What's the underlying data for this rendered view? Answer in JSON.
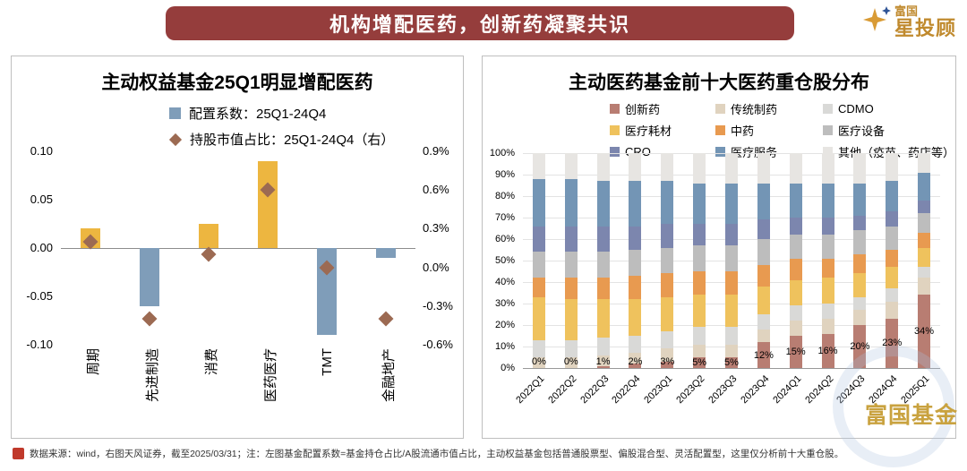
{
  "banner": {
    "title": "机构增配医药，创新药凝聚共识"
  },
  "logo": {
    "brand": "富国",
    "name": "星投顾"
  },
  "watermark": {
    "text": "富国基金"
  },
  "footer": {
    "text": "数据来源：wind，右图天风证券，截至2025/03/31；注：左图基金配置系数=基金持仓占比/A股流通市值占比，主动权益基金包括普通股票型、偏股混合型、灵活配置型，这里仅分析前十大重仓股。"
  },
  "chart_data": [
    {
      "id": "fund-allocation",
      "type": "bar",
      "title": "主动权益基金25Q1明显增配医药",
      "legend": [
        {
          "label": "配置系数：25Q1-24Q4",
          "marker": "square",
          "color": "#7f9db9"
        },
        {
          "label": "持股市值占比：25Q1-24Q4（右）",
          "marker": "diamond",
          "color": "#9c6a52"
        }
      ],
      "categories": [
        "周期",
        "先进制造",
        "消费",
        "医药医疗",
        "TMT",
        "金融地产"
      ],
      "bar_values": [
        0.02,
        -0.06,
        0.025,
        0.09,
        -0.09,
        -0.01
      ],
      "bar_color_positive": "#edb640",
      "bar_color_negative": "#7f9db9",
      "diamond_values": [
        0.2,
        -0.4,
        0.1,
        0.6,
        0.0,
        -0.4
      ],
      "left_axis": {
        "min": -0.1,
        "max": 0.1,
        "ticks": [
          "0.10",
          "0.05",
          "0.00",
          "-0.05",
          "-0.10"
        ]
      },
      "right_axis": {
        "min": -0.6,
        "max": 0.9,
        "ticks": [
          "0.9%",
          "0.6%",
          "0.3%",
          "0.0%",
          "-0.3%",
          "-0.6%"
        ]
      }
    },
    {
      "id": "top10-holdings",
      "type": "stacked-bar",
      "title": "主动医药基金前十大医药重仓股分布",
      "categories": [
        "2022Q1",
        "2022Q2",
        "2022Q3",
        "2022Q4",
        "2023Q1",
        "2023Q2",
        "2023Q3",
        "2023Q4",
        "2024Q1",
        "2024Q2",
        "2024Q3",
        "2024Q4",
        "2025Q1"
      ],
      "series": [
        {
          "name": "创新药",
          "color": "#b87d72",
          "values": [
            0,
            0,
            1,
            2,
            3,
            5,
            5,
            12,
            15,
            16,
            20,
            23,
            34
          ]
        },
        {
          "name": "传统制药",
          "color": "#e0d3bf",
          "values": [
            5,
            5,
            5,
            5,
            6,
            6,
            6,
            6,
            7,
            7,
            7,
            8,
            8
          ]
        },
        {
          "name": "CDMO",
          "color": "#d9d9d7",
          "values": [
            8,
            8,
            8,
            8,
            8,
            8,
            8,
            7,
            7,
            7,
            6,
            6,
            5
          ]
        },
        {
          "name": "医疗耗材",
          "color": "#efc25d",
          "values": [
            20,
            19,
            18,
            17,
            16,
            15,
            15,
            13,
            12,
            12,
            11,
            10,
            9
          ]
        },
        {
          "name": "中药",
          "color": "#e89a50",
          "values": [
            9,
            10,
            10,
            11,
            11,
            11,
            11,
            10,
            10,
            9,
            9,
            8,
            7
          ]
        },
        {
          "name": "医疗设备",
          "color": "#bdbdbd",
          "values": [
            12,
            12,
            12,
            12,
            12,
            12,
            12,
            12,
            11,
            11,
            11,
            11,
            9
          ]
        },
        {
          "name": "CRO",
          "color": "#7c86ae",
          "values": [
            12,
            12,
            12,
            11,
            11,
            10,
            10,
            9,
            8,
            8,
            7,
            7,
            6
          ]
        },
        {
          "name": "医疗服务",
          "color": "#7395b5",
          "values": [
            22,
            22,
            21,
            21,
            20,
            19,
            19,
            17,
            16,
            16,
            15,
            14,
            13
          ]
        },
        {
          "name": "其他（疫苗、药店等）",
          "color": "#e7e5e2",
          "values": [
            12,
            12,
            13,
            13,
            13,
            14,
            14,
            14,
            14,
            14,
            14,
            13,
            9
          ]
        }
      ],
      "labels": [
        "0%",
        "0%",
        "1%",
        "2%",
        "3%",
        "5%",
        "5%",
        "12%",
        "15%",
        "16%",
        "20%",
        "23%",
        "34%"
      ],
      "y_axis": {
        "min": 0,
        "max": 100,
        "ticks": [
          "100%",
          "90%",
          "80%",
          "70%",
          "60%",
          "50%",
          "40%",
          "30%",
          "20%",
          "10%",
          "0%"
        ]
      }
    }
  ]
}
